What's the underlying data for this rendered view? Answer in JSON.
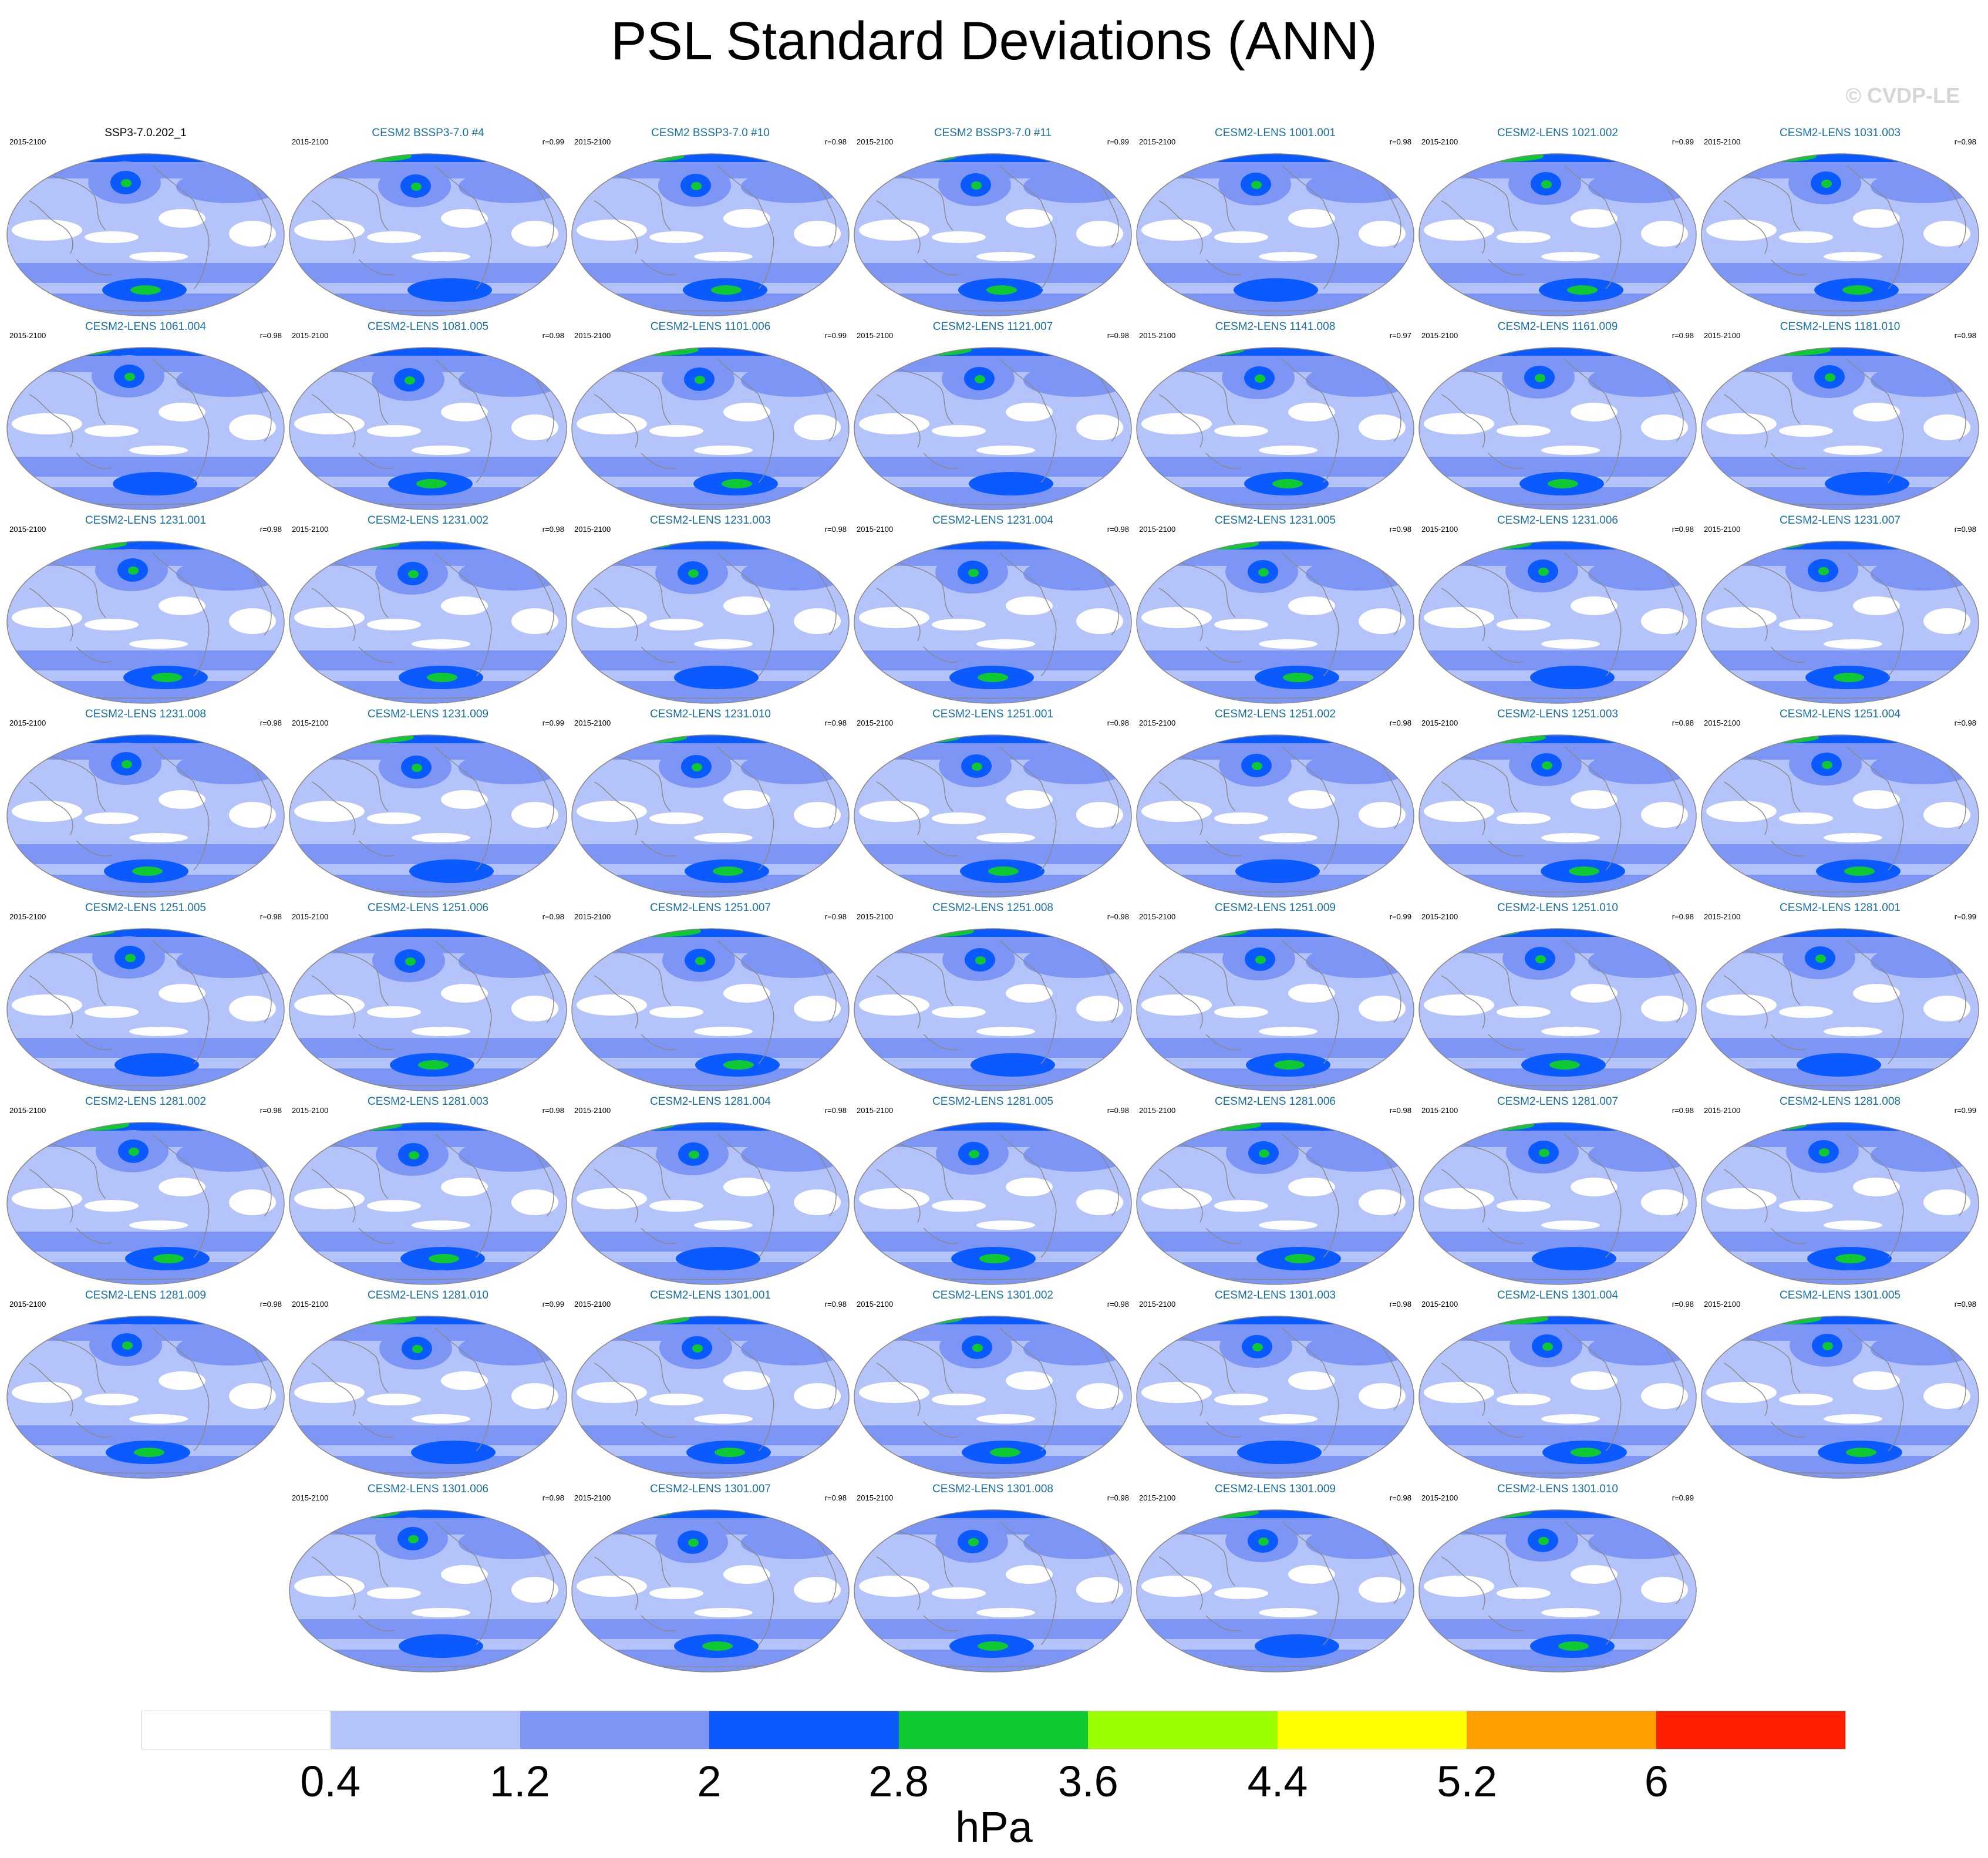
{
  "title": "PSL Standard Deviations (ANN)",
  "watermark": "© CVDP-LE",
  "chart_data": {
    "type": "heatmap",
    "title": "PSL Standard Deviations (ANN)",
    "variable": "PSL",
    "units": "hPa",
    "panels": [
      {
        "name": "SSP3-7.0.202_1",
        "period": "2015-2100",
        "r": ""
      },
      {
        "name": "CESM2 BSSP3-7.0 #4",
        "period": "2015-2100",
        "r": "r=0.99"
      },
      {
        "name": "CESM2 BSSP3-7.0 #10",
        "period": "2015-2100",
        "r": "r=0.98"
      },
      {
        "name": "CESM2 BSSP3-7.0 #11",
        "period": "2015-2100",
        "r": "r=0.99"
      },
      {
        "name": "CESM2-LENS 1001.001",
        "period": "2015-2100",
        "r": "r=0.98"
      },
      {
        "name": "CESM2-LENS 1021.002",
        "period": "2015-2100",
        "r": "r=0.99"
      },
      {
        "name": "CESM2-LENS 1031.003",
        "period": "2015-2100",
        "r": "r=0.98"
      },
      {
        "name": "CESM2-LENS 1061.004",
        "period": "2015-2100",
        "r": "r=0.98"
      },
      {
        "name": "CESM2-LENS 1081.005",
        "period": "2015-2100",
        "r": "r=0.98"
      },
      {
        "name": "CESM2-LENS 1101.006",
        "period": "2015-2100",
        "r": "r=0.99"
      },
      {
        "name": "CESM2-LENS 1121.007",
        "period": "2015-2100",
        "r": "r=0.98"
      },
      {
        "name": "CESM2-LENS 1141.008",
        "period": "2015-2100",
        "r": "r=0.97"
      },
      {
        "name": "CESM2-LENS 1161.009",
        "period": "2015-2100",
        "r": "r=0.98"
      },
      {
        "name": "CESM2-LENS 1181.010",
        "period": "2015-2100",
        "r": "r=0.98"
      },
      {
        "name": "CESM2-LENS 1231.001",
        "period": "2015-2100",
        "r": "r=0.98"
      },
      {
        "name": "CESM2-LENS 1231.002",
        "period": "2015-2100",
        "r": "r=0.98"
      },
      {
        "name": "CESM2-LENS 1231.003",
        "period": "2015-2100",
        "r": "r=0.98"
      },
      {
        "name": "CESM2-LENS 1231.004",
        "period": "2015-2100",
        "r": "r=0.98"
      },
      {
        "name": "CESM2-LENS 1231.005",
        "period": "2015-2100",
        "r": "r=0.98"
      },
      {
        "name": "CESM2-LENS 1231.006",
        "period": "2015-2100",
        "r": "r=0.98"
      },
      {
        "name": "CESM2-LENS 1231.007",
        "period": "2015-2100",
        "r": "r=0.98"
      },
      {
        "name": "CESM2-LENS 1231.008",
        "period": "2015-2100",
        "r": "r=0.98"
      },
      {
        "name": "CESM2-LENS 1231.009",
        "period": "2015-2100",
        "r": "r=0.99"
      },
      {
        "name": "CESM2-LENS 1231.010",
        "period": "2015-2100",
        "r": "r=0.98"
      },
      {
        "name": "CESM2-LENS 1251.001",
        "period": "2015-2100",
        "r": "r=0.98"
      },
      {
        "name": "CESM2-LENS 1251.002",
        "period": "2015-2100",
        "r": "r=0.98"
      },
      {
        "name": "CESM2-LENS 1251.003",
        "period": "2015-2100",
        "r": "r=0.98"
      },
      {
        "name": "CESM2-LENS 1251.004",
        "period": "2015-2100",
        "r": "r=0.98"
      },
      {
        "name": "CESM2-LENS 1251.005",
        "period": "2015-2100",
        "r": "r=0.98"
      },
      {
        "name": "CESM2-LENS 1251.006",
        "period": "2015-2100",
        "r": "r=0.98"
      },
      {
        "name": "CESM2-LENS 1251.007",
        "period": "2015-2100",
        "r": "r=0.98"
      },
      {
        "name": "CESM2-LENS 1251.008",
        "period": "2015-2100",
        "r": "r=0.98"
      },
      {
        "name": "CESM2-LENS 1251.009",
        "period": "2015-2100",
        "r": "r=0.99"
      },
      {
        "name": "CESM2-LENS 1251.010",
        "period": "2015-2100",
        "r": "r=0.98"
      },
      {
        "name": "CESM2-LENS 1281.001",
        "period": "2015-2100",
        "r": "r=0.99"
      },
      {
        "name": "CESM2-LENS 1281.002",
        "period": "2015-2100",
        "r": "r=0.98"
      },
      {
        "name": "CESM2-LENS 1281.003",
        "period": "2015-2100",
        "r": "r=0.98"
      },
      {
        "name": "CESM2-LENS 1281.004",
        "period": "2015-2100",
        "r": "r=0.98"
      },
      {
        "name": "CESM2-LENS 1281.005",
        "period": "2015-2100",
        "r": "r=0.98"
      },
      {
        "name": "CESM2-LENS 1281.006",
        "period": "2015-2100",
        "r": "r=0.98"
      },
      {
        "name": "CESM2-LENS 1281.007",
        "period": "2015-2100",
        "r": "r=0.98"
      },
      {
        "name": "CESM2-LENS 1281.008",
        "period": "2015-2100",
        "r": "r=0.99"
      },
      {
        "name": "CESM2-LENS 1281.009",
        "period": "2015-2100",
        "r": "r=0.98"
      },
      {
        "name": "CESM2-LENS 1281.010",
        "period": "2015-2100",
        "r": "r=0.99"
      },
      {
        "name": "CESM2-LENS 1301.001",
        "period": "2015-2100",
        "r": "r=0.98"
      },
      {
        "name": "CESM2-LENS 1301.002",
        "period": "2015-2100",
        "r": "r=0.98"
      },
      {
        "name": "CESM2-LENS 1301.003",
        "period": "2015-2100",
        "r": "r=0.98"
      },
      {
        "name": "CESM2-LENS 1301.004",
        "period": "2015-2100",
        "r": "r=0.98"
      },
      {
        "name": "CESM2-LENS 1301.005",
        "period": "2015-2100",
        "r": "r=0.98"
      },
      {
        "name": "CESM2-LENS 1301.006",
        "period": "2015-2100",
        "r": "r=0.98"
      },
      {
        "name": "CESM2-LENS 1301.007",
        "period": "2015-2100",
        "r": "r=0.98"
      },
      {
        "name": "CESM2-LENS 1301.008",
        "period": "2015-2100",
        "r": "r=0.98"
      },
      {
        "name": "CESM2-LENS 1301.009",
        "period": "2015-2100",
        "r": "r=0.98"
      },
      {
        "name": "CESM2-LENS 1301.010",
        "period": "2015-2100",
        "r": "r=0.99"
      }
    ],
    "colorbar": {
      "label": "hPa",
      "levels": [
        "0.4",
        "1.2",
        "2",
        "2.8",
        "3.6",
        "4.4",
        "5.2",
        "6"
      ],
      "colors": [
        "#ffffff",
        "#b4c3fa",
        "#7d96f5",
        "#0a5aff",
        "#0fc832",
        "#9bff00",
        "#ffff00",
        "#ffa000",
        "#ff1e00"
      ]
    }
  }
}
